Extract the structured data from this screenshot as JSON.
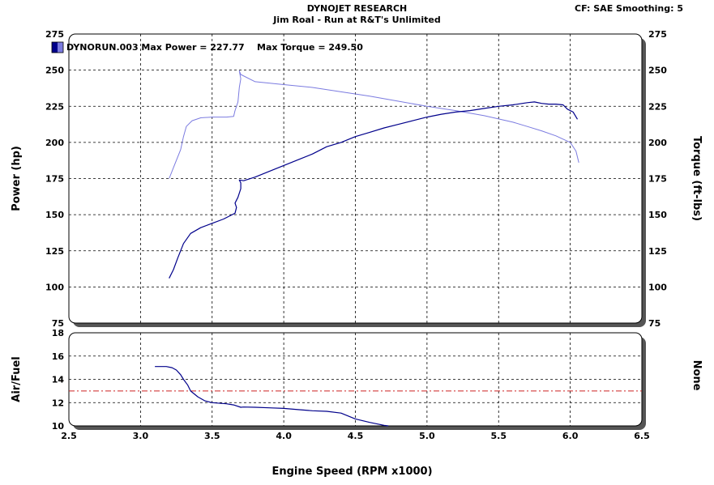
{
  "header": {
    "title": "DYNOJET RESEARCH",
    "subtitle": "Jim Roal - Run at R&T's Unlimited",
    "settings": "CF: SAE  Smoothing: 5"
  },
  "colors": {
    "power": "#00008b",
    "torque": "#7b7be0",
    "afr": "#00008b",
    "reference": "#cc2222",
    "grid": "#000000",
    "panel": "#ffffff",
    "frame": "#000000",
    "shadow": "#555555"
  },
  "chart_data": [
    {
      "type": "line",
      "panel": "power-torque",
      "legend": "DYNORUN.003 Max Power = 227.77    Max Torque = 249.50",
      "ylabel": "Power (hp)",
      "y2label": "Torque (ft-lbs)",
      "xlim": [
        2.5,
        6.5
      ],
      "ylim": [
        75,
        275
      ],
      "y2lim": [
        75,
        275
      ],
      "xticks": [
        "2.5",
        "3.0",
        "3.5",
        "4.0",
        "4.5",
        "5.0",
        "5.5",
        "6.0",
        "6.5"
      ],
      "yticks": [
        "275",
        "250",
        "225",
        "200",
        "175",
        "150",
        "125",
        "100",
        "75"
      ],
      "y2ticks": [
        "275",
        "250",
        "225",
        "200",
        "175",
        "150",
        "125",
        "100",
        "75"
      ],
      "grid": true,
      "series": [
        {
          "key": "power",
          "x": [
            3.2,
            3.23,
            3.26,
            3.3,
            3.35,
            3.42,
            3.5,
            3.58,
            3.64,
            3.66,
            3.67,
            3.66,
            3.68,
            3.7,
            3.7,
            3.69,
            3.72,
            3.8,
            3.9,
            4.0,
            4.1,
            4.2,
            4.3,
            4.4,
            4.5,
            4.6,
            4.7,
            4.8,
            4.9,
            5.0,
            5.1,
            5.2,
            5.3,
            5.4,
            5.5,
            5.6,
            5.7,
            5.75,
            5.8,
            5.85,
            5.9,
            5.95,
            5.98,
            6.02,
            6.05
          ],
          "y": [
            106,
            112,
            120,
            130,
            137,
            141,
            144,
            147,
            150,
            151,
            155,
            158,
            162,
            168,
            172,
            174,
            173.5,
            176,
            180,
            184,
            188,
            192,
            197,
            200,
            204,
            207,
            210,
            212.5,
            215,
            217.5,
            219.5,
            221,
            222,
            223.5,
            225,
            226,
            227.5,
            228,
            227,
            226.5,
            226.5,
            226,
            223,
            221,
            216
          ]
        },
        {
          "key": "torque",
          "x": [
            3.2,
            3.24,
            3.28,
            3.3,
            3.32,
            3.36,
            3.42,
            3.5,
            3.6,
            3.65,
            3.66,
            3.68,
            3.69,
            3.7,
            3.69,
            3.7,
            3.8,
            4.0,
            4.2,
            4.4,
            4.6,
            4.8,
            5.0,
            5.2,
            5.4,
            5.6,
            5.7,
            5.8,
            5.9,
            6.0,
            6.04,
            6.06
          ],
          "y": [
            175,
            185,
            195,
            204,
            211,
            215,
            217,
            217.5,
            217.5,
            218,
            222,
            228,
            238,
            244,
            249.5,
            247,
            242,
            240,
            238,
            235,
            232,
            228.5,
            225,
            222,
            218.5,
            214,
            211,
            208,
            204.5,
            200,
            194,
            186
          ]
        }
      ]
    },
    {
      "type": "line",
      "panel": "air-fuel",
      "ylabel": "Air/Fuel",
      "y2label": "None",
      "xlabel": "Engine Speed (RPM x1000)",
      "xlim": [
        2.5,
        6.5
      ],
      "ylim": [
        10,
        18
      ],
      "yticks": [
        "18",
        "16",
        "14",
        "12",
        "10"
      ],
      "xticks": [
        "2.5",
        "3.0",
        "3.5",
        "4.0",
        "4.5",
        "5.0",
        "5.5",
        "6.0",
        "6.5"
      ],
      "grid": true,
      "reference_y": 13,
      "series": [
        {
          "key": "afr",
          "x": [
            3.1,
            3.18,
            3.22,
            3.25,
            3.28,
            3.3,
            3.33,
            3.35,
            3.4,
            3.45,
            3.5,
            3.6,
            3.65,
            3.7,
            3.72,
            3.8,
            3.9,
            4.0,
            4.1,
            4.2,
            4.3,
            4.4,
            4.5,
            4.6,
            4.7,
            4.73
          ],
          "y": [
            15.1,
            15.1,
            15.0,
            14.8,
            14.4,
            14.0,
            13.5,
            13.0,
            12.5,
            12.15,
            12.0,
            11.9,
            11.8,
            11.6,
            11.62,
            11.6,
            11.55,
            11.5,
            11.4,
            11.3,
            11.25,
            11.1,
            10.6,
            10.3,
            10.05,
            10.0
          ]
        }
      ]
    }
  ]
}
